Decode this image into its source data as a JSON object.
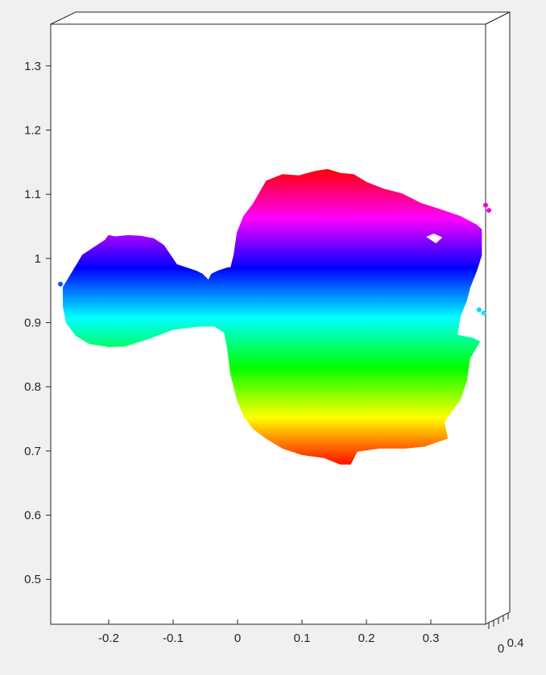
{
  "chart_data": {
    "type": "scatter",
    "title": "",
    "xlabel": "",
    "ylabel": "",
    "zlabel": "",
    "xlim": [
      -0.29,
      0.385
    ],
    "ylim": [
      0.43,
      1.365
    ],
    "x_ticks": [
      -0.2,
      -0.1,
      0,
      0.1,
      0.2,
      0.3
    ],
    "x_tick_labels": [
      "-0.2",
      "-0.1",
      "0",
      "0.1",
      "0.2",
      "0.3"
    ],
    "y_ticks": [
      0.5,
      0.6,
      0.7,
      0.8,
      0.9,
      1.0,
      1.1,
      1.2,
      1.3
    ],
    "y_tick_labels": [
      "0.5",
      "0.6",
      "0.7",
      "0.8",
      "0.9",
      "1",
      "1.1",
      "1.2",
      "1.3"
    ],
    "z_tick_labels": [
      "0",
      "0.4"
    ],
    "grid": false,
    "colormap": "hsv",
    "color_by": "y",
    "color_range": [
      0.675,
      1.14
    ],
    "axes_background": "#ffffff",
    "figure_background": "#f0f0f0",
    "series": [
      {
        "kind": "point-cloud-outline",
        "points": [
          [
            -0.27,
            0.955
          ],
          [
            -0.255,
            0.98
          ],
          [
            -0.24,
            1.005
          ],
          [
            -0.225,
            1.015
          ],
          [
            -0.205,
            1.028
          ],
          [
            -0.2,
            1.035
          ],
          [
            -0.19,
            1.033
          ],
          [
            -0.17,
            1.035
          ],
          [
            -0.15,
            1.034
          ],
          [
            -0.13,
            1.03
          ],
          [
            -0.115,
            1.02
          ],
          [
            -0.105,
            1.005
          ],
          [
            -0.095,
            0.99
          ],
          [
            -0.08,
            0.985
          ],
          [
            -0.065,
            0.98
          ],
          [
            -0.055,
            0.975
          ],
          [
            -0.045,
            0.965
          ],
          [
            -0.04,
            0.975
          ],
          [
            -0.03,
            0.98
          ],
          [
            -0.015,
            0.985
          ],
          [
            -0.01,
            0.985
          ],
          [
            -0.005,
            1.005
          ],
          [
            0.0,
            1.04
          ],
          [
            0.01,
            1.065
          ],
          [
            0.025,
            1.085
          ],
          [
            0.045,
            1.12
          ],
          [
            0.07,
            1.13
          ],
          [
            0.095,
            1.128
          ],
          [
            0.12,
            1.135
          ],
          [
            0.14,
            1.138
          ],
          [
            0.16,
            1.132
          ],
          [
            0.18,
            1.13
          ],
          [
            0.2,
            1.118
          ],
          [
            0.225,
            1.108
          ],
          [
            0.255,
            1.1
          ],
          [
            0.285,
            1.085
          ],
          [
            0.31,
            1.077
          ],
          [
            0.345,
            1.065
          ],
          [
            0.37,
            1.052
          ],
          [
            0.378,
            1.045
          ],
          [
            0.378,
            1.005
          ],
          [
            0.37,
            0.98
          ],
          [
            0.36,
            0.955
          ],
          [
            0.355,
            0.935
          ],
          [
            0.345,
            0.91
          ],
          [
            0.34,
            0.88
          ],
          [
            0.365,
            0.875
          ],
          [
            0.375,
            0.87
          ],
          [
            0.36,
            0.845
          ],
          [
            0.355,
            0.81
          ],
          [
            0.345,
            0.78
          ],
          [
            0.33,
            0.76
          ],
          [
            0.32,
            0.745
          ],
          [
            0.325,
            0.72
          ],
          [
            0.31,
            0.715
          ],
          [
            0.29,
            0.708
          ],
          [
            0.26,
            0.705
          ],
          [
            0.22,
            0.705
          ],
          [
            0.185,
            0.7
          ],
          [
            0.175,
            0.68
          ],
          [
            0.16,
            0.68
          ],
          [
            0.135,
            0.69
          ],
          [
            0.1,
            0.695
          ],
          [
            0.07,
            0.705
          ],
          [
            0.045,
            0.72
          ],
          [
            0.025,
            0.735
          ],
          [
            0.01,
            0.755
          ],
          [
            0.0,
            0.78
          ],
          [
            -0.01,
            0.82
          ],
          [
            -0.015,
            0.86
          ],
          [
            -0.02,
            0.885
          ],
          [
            -0.035,
            0.895
          ],
          [
            -0.06,
            0.895
          ],
          [
            -0.1,
            0.89
          ],
          [
            -0.14,
            0.875
          ],
          [
            -0.175,
            0.864
          ],
          [
            -0.2,
            0.863
          ],
          [
            -0.23,
            0.868
          ],
          [
            -0.25,
            0.88
          ],
          [
            -0.265,
            0.9
          ],
          [
            -0.27,
            0.925
          ]
        ],
        "holes": [
          [
            [
              0.29,
              1.034
            ],
            [
              0.305,
              1.04
            ],
            [
              0.32,
              1.033
            ],
            [
              0.308,
              1.022
            ]
          ]
        ],
        "stray_points": [
          [
            0.385,
            1.083
          ],
          [
            0.39,
            1.075
          ],
          [
            0.375,
            0.92
          ],
          [
            0.382,
            0.915
          ],
          [
            -0.275,
            0.96
          ]
        ]
      }
    ]
  }
}
